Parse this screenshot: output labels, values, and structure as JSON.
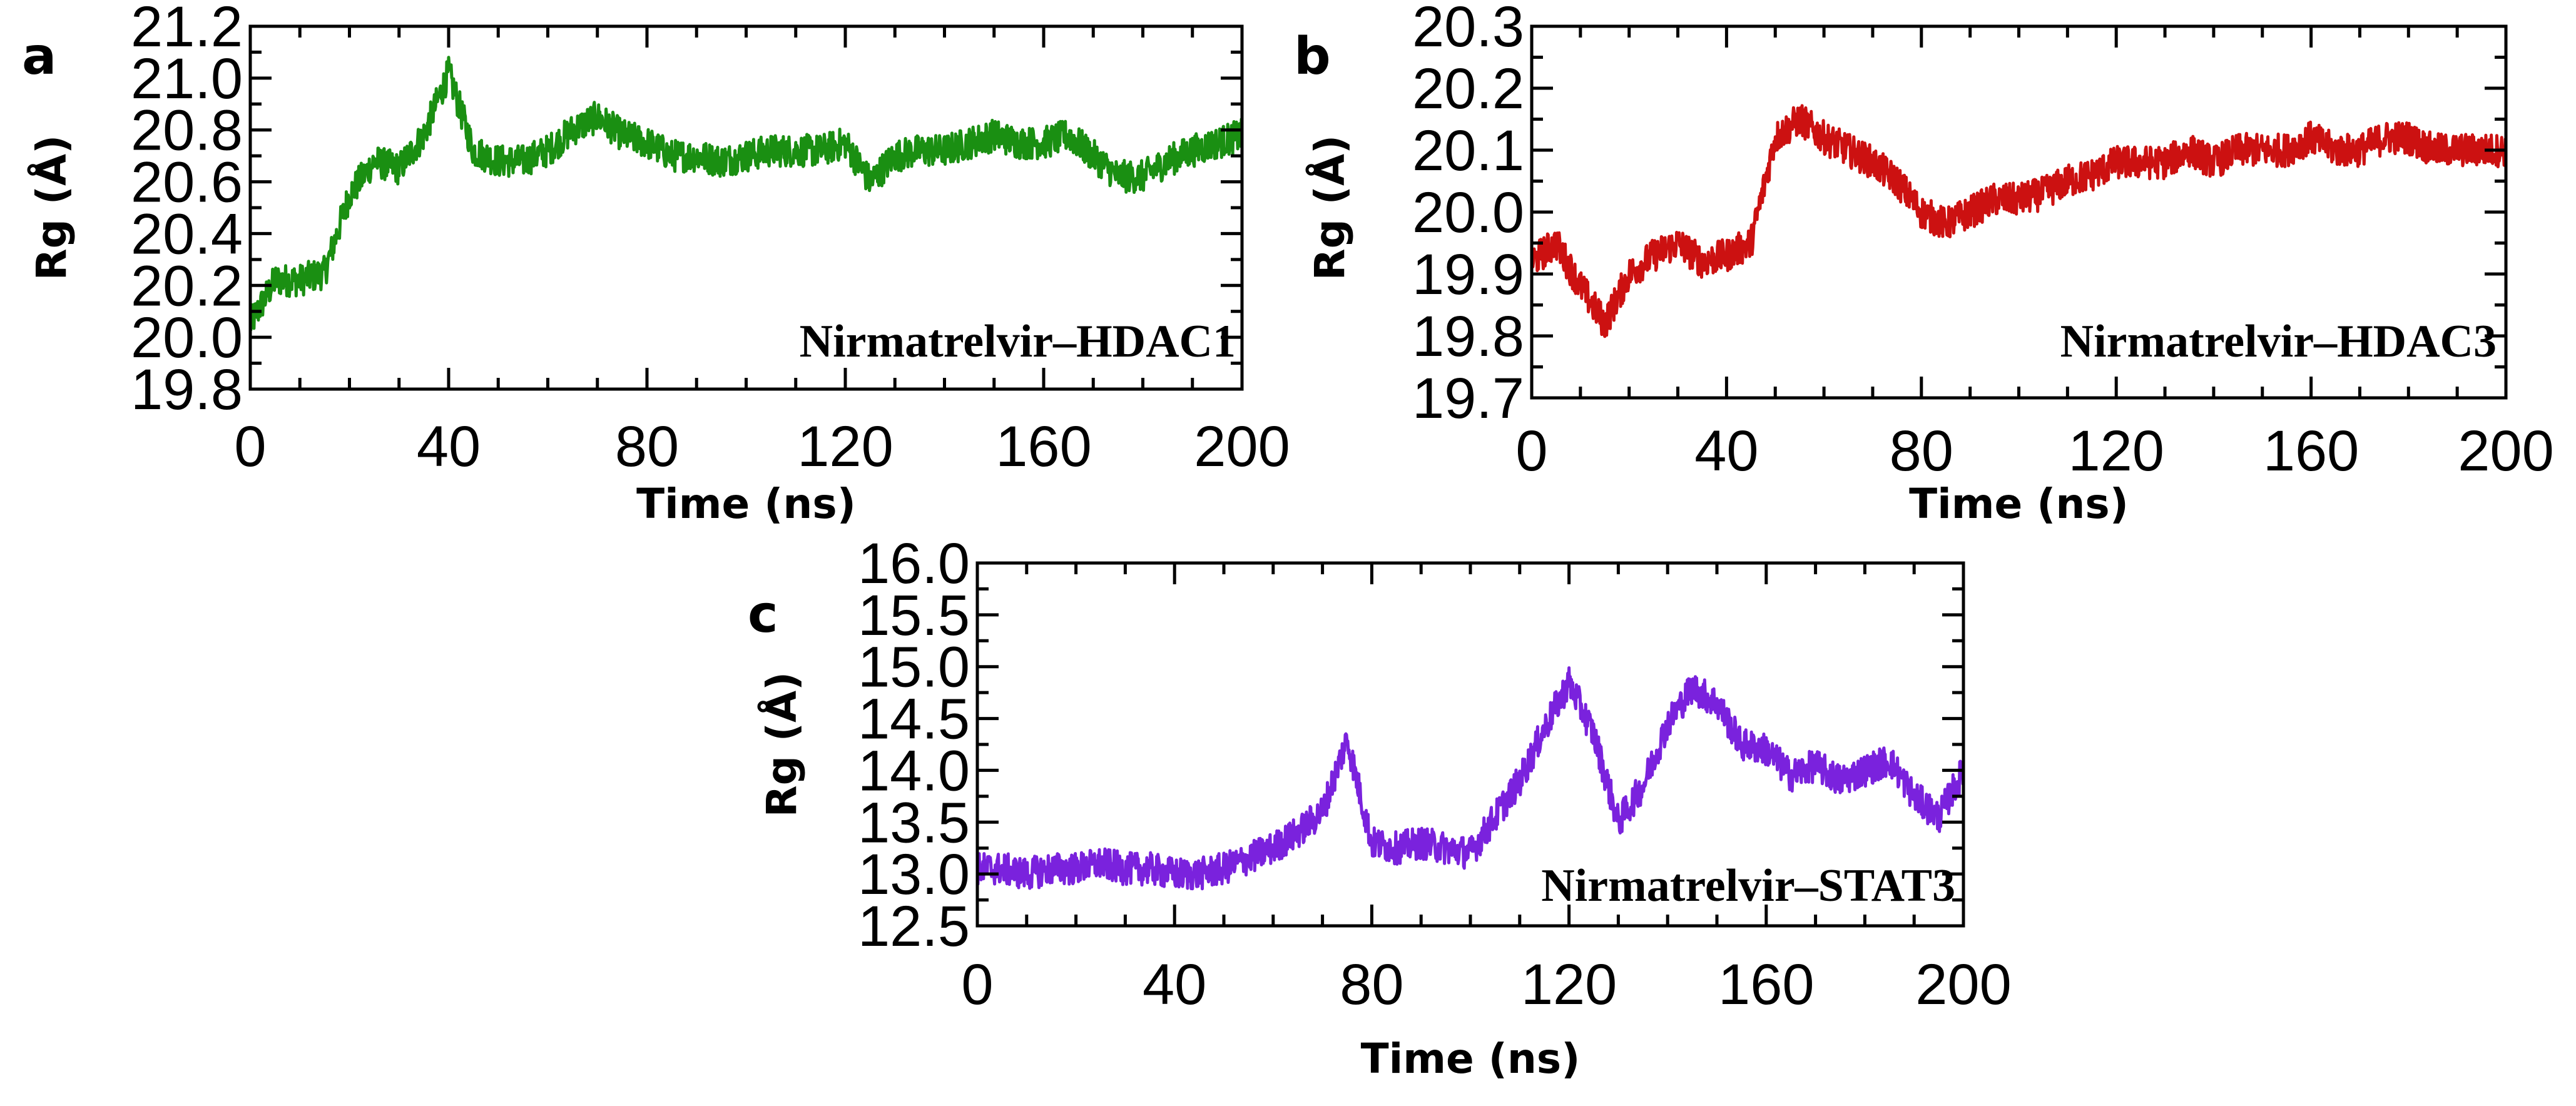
{
  "chart_data": [
    {
      "type": "line",
      "panel_label": "a",
      "title": "",
      "annotation": "Nirmatrelvir–HDAC1",
      "xlabel": "Time (ns)",
      "ylabel": "Rg (Å)",
      "xlim": [
        0,
        200
      ],
      "ylim": [
        19.8,
        21.2
      ],
      "xticks": [
        0,
        40,
        80,
        120,
        160,
        200
      ],
      "yticks": [
        19.8,
        20.0,
        20.2,
        20.4,
        20.6,
        20.8,
        21.0,
        21.2
      ],
      "x_tick_labels": [
        "0",
        "40",
        "80",
        "120",
        "160",
        "200"
      ],
      "y_tick_labels": [
        "19.8",
        "20.0",
        "20.2",
        "20.4",
        "20.6",
        "20.8",
        "21.0",
        "21.2"
      ],
      "color": "#1a8f12",
      "series": [
        {
          "name": "Nirmatrelvir–HDAC1",
          "x": [
            0,
            5,
            10,
            15,
            20,
            25,
            30,
            35,
            40,
            45,
            50,
            55,
            60,
            65,
            70,
            75,
            80,
            85,
            90,
            95,
            100,
            105,
            110,
            115,
            120,
            125,
            130,
            135,
            140,
            145,
            150,
            155,
            160,
            165,
            170,
            175,
            180,
            185,
            190,
            195,
            200
          ],
          "values": [
            20.05,
            20.22,
            20.22,
            20.25,
            20.55,
            20.68,
            20.65,
            20.78,
            21.02,
            20.72,
            20.68,
            20.68,
            20.72,
            20.8,
            20.85,
            20.78,
            20.75,
            20.7,
            20.7,
            20.68,
            20.7,
            20.72,
            20.72,
            20.72,
            20.75,
            20.6,
            20.7,
            20.72,
            20.72,
            20.75,
            20.78,
            20.75,
            20.75,
            20.78,
            20.7,
            20.62,
            20.62,
            20.68,
            20.72,
            20.75,
            20.78
          ]
        }
      ]
    },
    {
      "type": "line",
      "panel_label": "b",
      "title": "",
      "annotation": "Nirmatrelvir–HDAC3",
      "xlabel": "Time (ns)",
      "ylabel": "Rg (Å)",
      "xlim": [
        0,
        200
      ],
      "ylim": [
        19.7,
        20.3
      ],
      "xticks": [
        0,
        40,
        80,
        120,
        160,
        200
      ],
      "yticks": [
        19.7,
        19.8,
        19.9,
        20.0,
        20.1,
        20.2,
        20.3
      ],
      "x_tick_labels": [
        "0",
        "40",
        "80",
        "120",
        "160",
        "200"
      ],
      "y_tick_labels": [
        "19.7",
        "19.8",
        "19.9",
        "20.0",
        "20.1",
        "20.2",
        "20.3"
      ],
      "color": "#cc1111",
      "series": [
        {
          "name": "Nirmatrelvir–HDAC3",
          "x": [
            0,
            5,
            10,
            15,
            20,
            25,
            30,
            35,
            40,
            45,
            50,
            55,
            60,
            65,
            70,
            75,
            80,
            85,
            90,
            95,
            100,
            105,
            110,
            115,
            120,
            125,
            130,
            135,
            140,
            145,
            150,
            155,
            160,
            165,
            170,
            175,
            180,
            185,
            190,
            195,
            200
          ],
          "values": [
            19.92,
            19.95,
            19.88,
            19.82,
            19.9,
            19.93,
            19.95,
            19.92,
            19.93,
            19.95,
            20.12,
            20.15,
            20.12,
            20.1,
            20.08,
            20.05,
            20.0,
            19.98,
            20.0,
            20.02,
            20.02,
            20.03,
            20.05,
            20.06,
            20.08,
            20.08,
            20.08,
            20.1,
            20.08,
            20.1,
            20.1,
            20.1,
            20.12,
            20.1,
            20.1,
            20.12,
            20.12,
            20.1,
            20.1,
            20.1,
            20.1
          ]
        }
      ]
    },
    {
      "type": "line",
      "panel_label": "c",
      "title": "",
      "annotation": "Nirmatrelvir–STAT3",
      "xlabel": "Time (ns)",
      "ylabel": "Rg (Å)",
      "xlim": [
        0,
        200
      ],
      "ylim": [
        12.5,
        16.0
      ],
      "xticks": [
        0,
        40,
        80,
        120,
        160,
        200
      ],
      "yticks": [
        12.5,
        13.0,
        13.5,
        14.0,
        14.5,
        15.0,
        15.5,
        16.0
      ],
      "x_tick_labels": [
        "0",
        "40",
        "80",
        "120",
        "160",
        "200"
      ],
      "y_tick_labels": [
        "12.5",
        "13.0",
        "13.5",
        "14.0",
        "14.5",
        "15.0",
        "15.5",
        "16.0"
      ],
      "color": "#7a22dd",
      "series": [
        {
          "name": "Nirmatrelvir–STAT3",
          "x": [
            0,
            5,
            10,
            15,
            20,
            25,
            30,
            35,
            40,
            45,
            50,
            55,
            60,
            65,
            70,
            75,
            80,
            85,
            90,
            95,
            100,
            105,
            110,
            115,
            120,
            125,
            130,
            135,
            140,
            145,
            150,
            155,
            160,
            165,
            170,
            175,
            180,
            185,
            190,
            195,
            200
          ],
          "values": [
            13.05,
            13.05,
            13.0,
            13.05,
            13.05,
            13.1,
            13.05,
            13.05,
            13.0,
            13.0,
            13.05,
            13.15,
            13.25,
            13.4,
            13.6,
            14.3,
            13.3,
            13.25,
            13.3,
            13.25,
            13.2,
            13.55,
            13.9,
            14.4,
            14.85,
            14.35,
            13.5,
            13.85,
            14.45,
            14.8,
            14.65,
            14.25,
            14.2,
            13.95,
            14.05,
            13.9,
            14.0,
            14.1,
            13.75,
            13.55,
            14.0
          ]
        }
      ]
    }
  ]
}
